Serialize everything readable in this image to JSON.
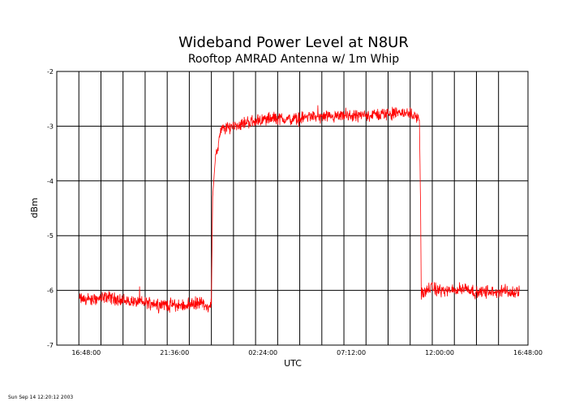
{
  "chart_data": {
    "type": "line",
    "title": "Wideband Power Level at N8UR",
    "subtitle": "Rooftop AMRAD Antenna w/ 1m Whip",
    "xlabel": "UTC",
    "ylabel": "dBm",
    "xlim": [
      "15:12:00",
      "16:48:00 (+1 day)"
    ],
    "ylim": [
      -7,
      -2
    ],
    "x_ticks": [
      "16:48:00",
      "21:36:00",
      "02:24:00",
      "07:12:00",
      "12:00:00",
      "16:48:00"
    ],
    "y_ticks": [
      "-2",
      "-3",
      "-4",
      "-5",
      "-6",
      "-7"
    ],
    "grid": true,
    "legend": "none",
    "footer": "Sun Sep 14 12:20:12 2003",
    "series": [
      {
        "color": "#ff0000",
        "x": [
          "16:26:00",
          "17:00:00",
          "18:00:00",
          "19:00:00",
          "20:00:00",
          "21:00:00",
          "22:00:00",
          "23:00:00",
          "23:30:00",
          "23:36:00",
          "23:40:00",
          "23:50:00",
          "00:00:00",
          "00:05:00",
          "00:10:00",
          "00:20:00",
          "00:40:00",
          "01:00:00",
          "01:30:00",
          "02:00:00",
          "03:00:00",
          "04:00:00",
          "05:00:00",
          "06:00:00",
          "07:00:00",
          "08:00:00",
          "09:00:00",
          "10:00:00",
          "10:40:00",
          "10:54:00",
          "10:58:00",
          "11:00:00",
          "11:02:00",
          "11:08:00",
          "11:30:00",
          "12:00:00",
          "12:30:00",
          "13:00:00",
          "13:30:00",
          "14:00:00",
          "14:30:00",
          "15:00:00",
          "15:30:00",
          "16:00:00",
          "16:20:00"
        ],
        "y": [
          -6.15,
          -6.18,
          -6.12,
          -6.2,
          -6.22,
          -6.25,
          -6.28,
          -6.22,
          -6.3,
          -6.25,
          -4.3,
          -3.5,
          -3.3,
          -3.15,
          -3.05,
          -3.05,
          -3.0,
          -2.98,
          -2.93,
          -2.9,
          -2.85,
          -2.88,
          -2.82,
          -2.85,
          -2.82,
          -2.8,
          -2.78,
          -2.75,
          -2.8,
          -2.9,
          -4.5,
          -6.1,
          -6.0,
          -6.05,
          -5.95,
          -6.0,
          -6.02,
          -5.98,
          -5.95,
          -6.05,
          -6.02,
          -6.05,
          -6.0,
          -6.05,
          -6.0
        ]
      }
    ]
  }
}
